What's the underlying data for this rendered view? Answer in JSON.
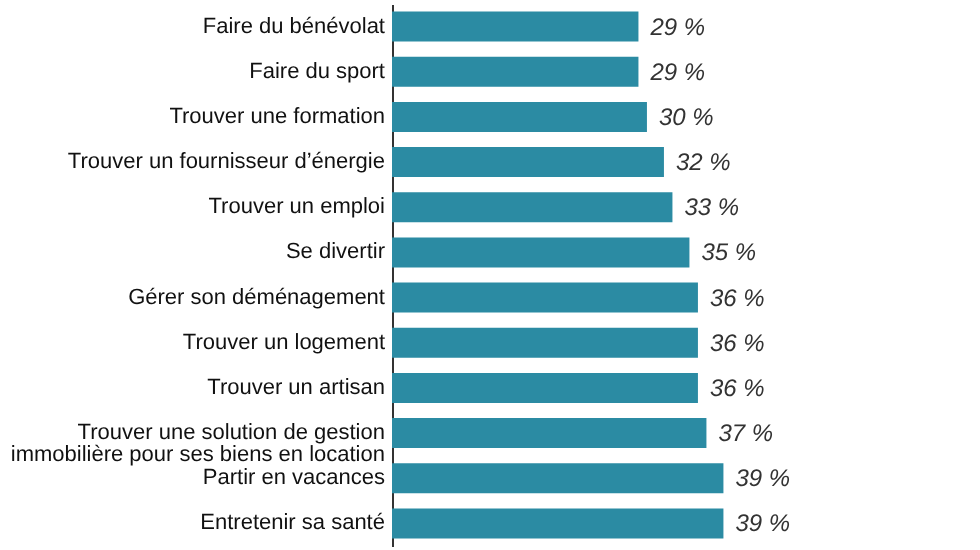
{
  "chart_data": {
    "type": "bar",
    "orientation": "horizontal",
    "categories": [
      "Faire du bénévolat",
      "Faire du sport",
      "Trouver une formation",
      "Trouver un fournisseur d’énergie",
      "Trouver un emploi",
      "Se divertir",
      "Gérer son déménagement",
      "Trouver un logement",
      "Trouver un artisan",
      "Trouver une solution de gestion\nimmobilière pour ses biens en location",
      "Partir en vacances",
      "Entretenir sa santé"
    ],
    "values": [
      29,
      29,
      30,
      32,
      33,
      35,
      36,
      36,
      36,
      37,
      39,
      39
    ],
    "value_labels": [
      "29 %",
      "29 %",
      "30 %",
      "32 %",
      "33 %",
      "35 %",
      "36 %",
      "36 %",
      "36 %",
      "37 %",
      "39 %",
      "39 %"
    ],
    "color": "#2b8ba3",
    "tick_labels": "y"
  }
}
